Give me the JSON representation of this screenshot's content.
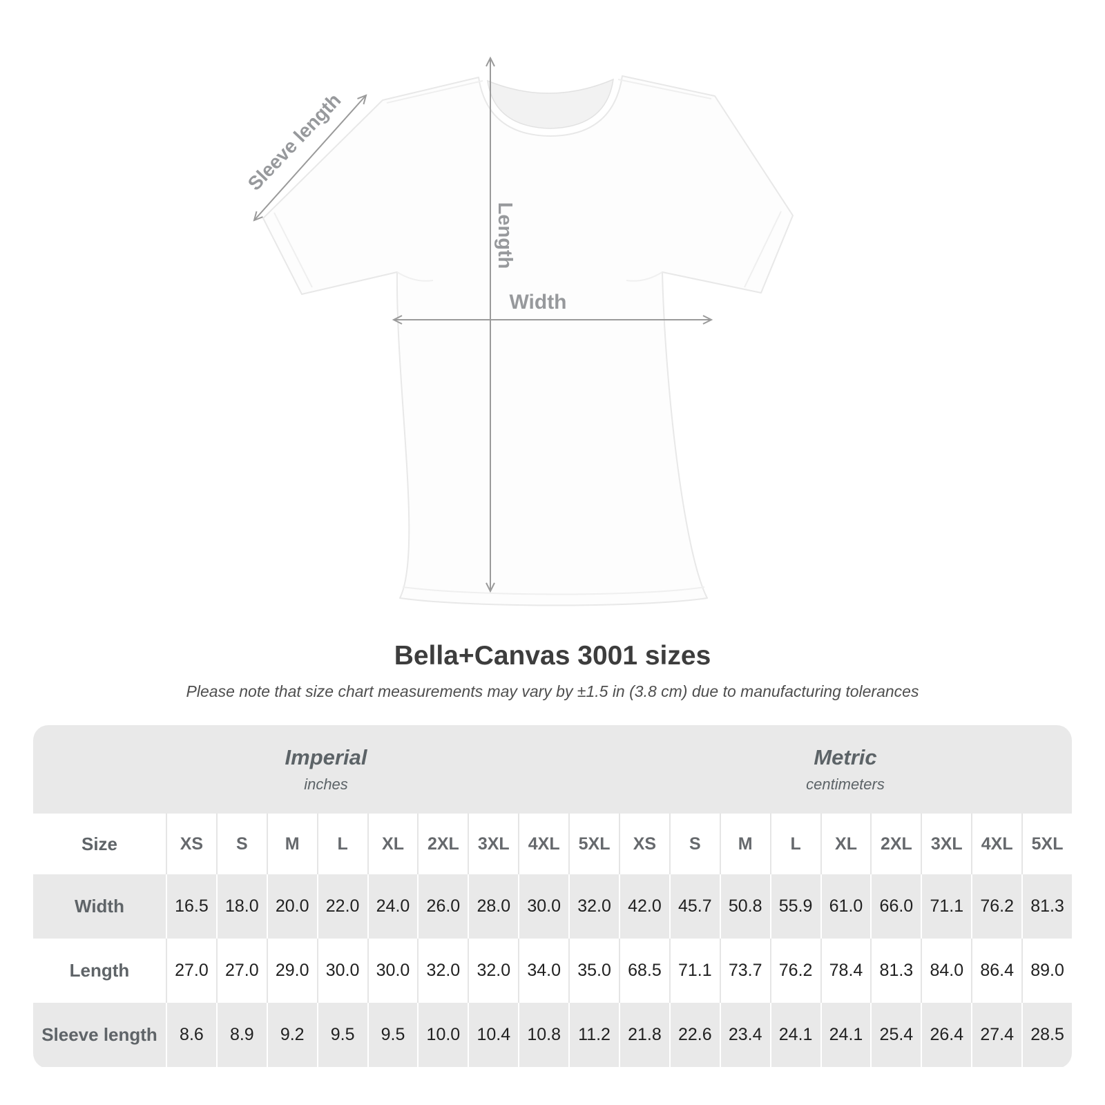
{
  "title": "Bella+Canvas 3001 sizes",
  "subtitle": "Please note that size chart measurements may vary by ±1.5 in (3.8 cm) due to manufacturing tolerances",
  "diagram": {
    "sleeve_length_label": "Sleeve length",
    "length_label": "Length",
    "width_label": "Width"
  },
  "size_table": {
    "corner_header": "Size",
    "unit_groups": [
      {
        "name": "Imperial",
        "unit": "inches"
      },
      {
        "name": "Metric",
        "unit": "centimeters"
      }
    ],
    "sizes": [
      "XS",
      "S",
      "M",
      "L",
      "XL",
      "2XL",
      "3XL",
      "4XL",
      "5XL"
    ],
    "rows": [
      {
        "label": "Width",
        "imperial": [
          "16.5",
          "18.0",
          "20.0",
          "22.0",
          "24.0",
          "26.0",
          "28.0",
          "30.0",
          "32.0"
        ],
        "metric": [
          "42.0",
          "45.7",
          "50.8",
          "55.9",
          "61.0",
          "66.0",
          "71.1",
          "76.2",
          "81.3"
        ]
      },
      {
        "label": "Length",
        "imperial": [
          "27.0",
          "27.0",
          "29.0",
          "30.0",
          "30.0",
          "32.0",
          "32.0",
          "34.0",
          "35.0"
        ],
        "metric": [
          "68.5",
          "71.1",
          "73.7",
          "76.2",
          "78.4",
          "81.3",
          "84.0",
          "86.4",
          "89.0"
        ]
      },
      {
        "label": "Sleeve length",
        "imperial": [
          "8.6",
          "8.9",
          "9.2",
          "9.5",
          "9.5",
          "10.0",
          "10.4",
          "10.8",
          "11.2"
        ],
        "metric": [
          "21.8",
          "22.6",
          "23.4",
          "24.1",
          "24.1",
          "25.4",
          "26.4",
          "27.4",
          "28.5"
        ]
      }
    ]
  },
  "chart_data": {
    "type": "table",
    "title": "Bella+Canvas 3001 sizes",
    "note": "Measurements may vary by ±1.5 in (3.8 cm) due to manufacturing tolerances",
    "sizes": [
      "XS",
      "S",
      "M",
      "L",
      "XL",
      "2XL",
      "3XL",
      "4XL",
      "5XL"
    ],
    "measurements": [
      {
        "name": "Width",
        "imperial_in": [
          16.5,
          18.0,
          20.0,
          22.0,
          24.0,
          26.0,
          28.0,
          30.0,
          32.0
        ],
        "metric_cm": [
          42.0,
          45.7,
          50.8,
          55.9,
          61.0,
          66.0,
          71.1,
          76.2,
          81.3
        ]
      },
      {
        "name": "Length",
        "imperial_in": [
          27.0,
          27.0,
          29.0,
          30.0,
          30.0,
          32.0,
          32.0,
          34.0,
          35.0
        ],
        "metric_cm": [
          68.5,
          71.1,
          73.7,
          76.2,
          78.4,
          81.3,
          84.0,
          86.4,
          89.0
        ]
      },
      {
        "name": "Sleeve length",
        "imperial_in": [
          8.6,
          8.9,
          9.2,
          9.5,
          9.5,
          10.0,
          10.4,
          10.8,
          11.2
        ],
        "metric_cm": [
          21.8,
          22.6,
          23.4,
          24.1,
          24.1,
          25.4,
          26.4,
          27.4,
          28.5
        ]
      }
    ]
  },
  "colors": {
    "table_band_gray": "#e9e9e9",
    "annotation_gray": "#9a9a9a",
    "title_text": "#3d3d3d",
    "label_text": "#5f6468",
    "value_text": "#212121"
  }
}
